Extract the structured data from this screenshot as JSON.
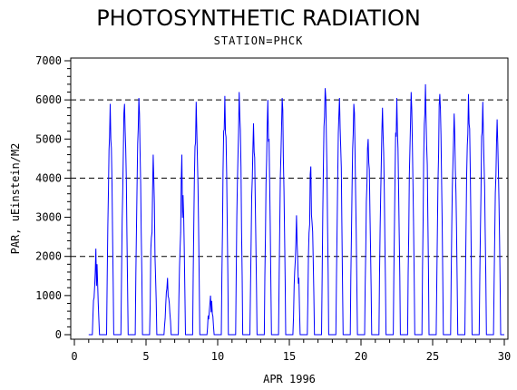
{
  "chart_data": {
    "type": "line",
    "title": "PHOTOSYNTHETIC RADIATION",
    "subtitle": "STATION=PHCK",
    "xlabel": "APR 1996",
    "ylabel": "PAR, uEinstein/M2",
    "xlim": [
      0,
      30
    ],
    "ylim": [
      0,
      7000
    ],
    "xticks": [
      "0",
      "5",
      "10",
      "15",
      "20",
      "25",
      "30"
    ],
    "yticks": [
      "0",
      "1000",
      "2000",
      "3000",
      "4000",
      "5000",
      "6000",
      "7000"
    ],
    "reference_lines": [
      2000,
      4000,
      6000
    ],
    "series_color": "#0000ff",
    "grid": false,
    "daily_peaks": [
      {
        "day": 1,
        "peak": 2200
      },
      {
        "day": 2,
        "peak": 5900
      },
      {
        "day": 3,
        "peak": 5900
      },
      {
        "day": 4,
        "peak": 6050
      },
      {
        "day": 5,
        "peak": 4600
      },
      {
        "day": 6,
        "peak": 1450
      },
      {
        "day": 7,
        "peak": 4600
      },
      {
        "day": 8,
        "peak": 5950
      },
      {
        "day": 9,
        "peak": 1000
      },
      {
        "day": 10,
        "peak": 6100
      },
      {
        "day": 11,
        "peak": 6200
      },
      {
        "day": 12,
        "peak": 5400
      },
      {
        "day": 13,
        "peak": 6000
      },
      {
        "day": 14,
        "peak": 6050
      },
      {
        "day": 15,
        "peak": 3050
      },
      {
        "day": 16,
        "peak": 4300
      },
      {
        "day": 17,
        "peak": 6300
      },
      {
        "day": 18,
        "peak": 6050
      },
      {
        "day": 19,
        "peak": 5900
      },
      {
        "day": 20,
        "peak": 5000
      },
      {
        "day": 21,
        "peak": 5800
      },
      {
        "day": 22,
        "peak": 6050
      },
      {
        "day": 23,
        "peak": 6200
      },
      {
        "day": 24,
        "peak": 6400
      },
      {
        "day": 25,
        "peak": 6150
      },
      {
        "day": 26,
        "peak": 5650
      },
      {
        "day": 27,
        "peak": 6150
      },
      {
        "day": 28,
        "peak": 5950
      },
      {
        "day": 29,
        "peak": 5500
      }
    ]
  }
}
